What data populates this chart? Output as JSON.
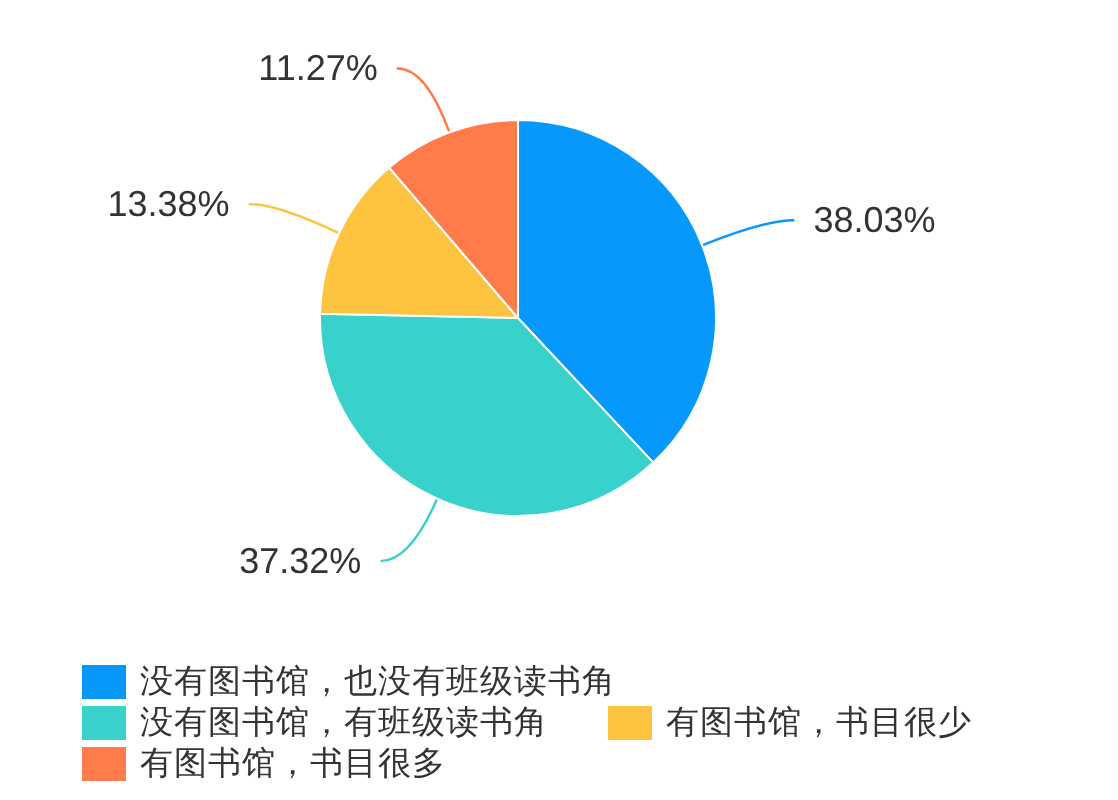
{
  "chart_data": {
    "type": "pie",
    "categories": [
      "没有图书馆，也没有班级读书角",
      "没有图书馆，有班级读书角",
      "有图书馆，书目很少",
      "有图书馆，书目很多"
    ],
    "values": [
      38.03,
      37.32,
      13.38,
      11.27
    ],
    "colors": [
      "#0798fe",
      "#38d1cb",
      "#fec43f",
      "#ff7b4a"
    ],
    "value_labels": [
      "38.03%",
      "37.32%",
      "13.38%",
      "11.27%"
    ],
    "legend": "bottom left"
  }
}
